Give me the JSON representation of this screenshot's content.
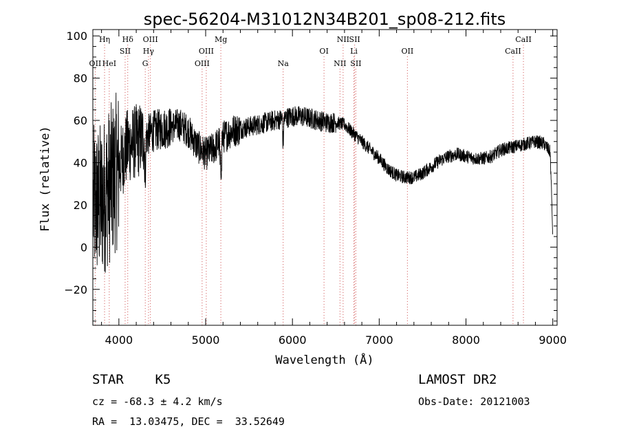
{
  "chart_data": {
    "type": "line",
    "title": "spec-56204-M31012N34B201_sp08-212.fits",
    "xlabel": "Wavelength (Å)",
    "ylabel": "Flux (relative)",
    "xlim": [
      3700,
      9050
    ],
    "ylim": [
      -37,
      103
    ],
    "xticks": [
      4000,
      5000,
      6000,
      7000,
      8000,
      9000
    ],
    "yticks": [
      -20,
      0,
      20,
      40,
      60,
      80,
      100
    ],
    "grid": false,
    "line_color": "#000000",
    "marker_color": "#d05050",
    "spectral_lines": [
      {
        "label": "Hη",
        "x": 3835,
        "row": 0
      },
      {
        "label": "OII",
        "x": 3727,
        "row": 2
      },
      {
        "label": "HeI",
        "x": 3889,
        "row": 2
      },
      {
        "label": "Hδ",
        "x": 4102,
        "row": 0
      },
      {
        "label": "SII",
        "x": 4072,
        "row": 1
      },
      {
        "label": "OIII",
        "x": 4363,
        "row": 0
      },
      {
        "label": "Hγ",
        "x": 4341,
        "row": 1
      },
      {
        "label": "G",
        "x": 4304,
        "row": 2
      },
      {
        "label": "Mg",
        "x": 5175,
        "row": 0
      },
      {
        "label": "OIII",
        "x": 5007,
        "row": 1
      },
      {
        "label": "OIII",
        "x": 4959,
        "row": 2
      },
      {
        "label": "Na",
        "x": 5893,
        "row": 2
      },
      {
        "label": "OI",
        "x": 6364,
        "row": 1
      },
      {
        "label": "NII",
        "x": 6584,
        "row": 0
      },
      {
        "label": "SII",
        "x": 6717,
        "row": 0
      },
      {
        "label": "Li",
        "x": 6708,
        "row": 1
      },
      {
        "label": "NII",
        "x": 6548,
        "row": 2
      },
      {
        "label": "SII",
        "x": 6731,
        "row": 2
      },
      {
        "label": "OII",
        "x": 7325,
        "row": 1
      },
      {
        "label": "CaII",
        "x": 8662,
        "row": 0
      },
      {
        "label": "CaII",
        "x": 8542,
        "row": 1
      }
    ],
    "continuum_anchors": [
      [
        3700,
        20
      ],
      [
        3800,
        22
      ],
      [
        3900,
        30
      ],
      [
        4000,
        38
      ],
      [
        4100,
        48
      ],
      [
        4200,
        50
      ],
      [
        4300,
        52
      ],
      [
        4400,
        55
      ],
      [
        4500,
        56
      ],
      [
        4600,
        57
      ],
      [
        4700,
        58
      ],
      [
        4800,
        55
      ],
      [
        4900,
        48
      ],
      [
        5000,
        44
      ],
      [
        5100,
        47
      ],
      [
        5200,
        52
      ],
      [
        5300,
        55
      ],
      [
        5400,
        56
      ],
      [
        5500,
        57
      ],
      [
        5600,
        58
      ],
      [
        5700,
        59
      ],
      [
        5800,
        60
      ],
      [
        5900,
        61
      ],
      [
        6000,
        62
      ],
      [
        6100,
        62
      ],
      [
        6200,
        61
      ],
      [
        6300,
        60
      ],
      [
        6400,
        59
      ],
      [
        6500,
        59
      ],
      [
        6600,
        58
      ],
      [
        6700,
        54
      ],
      [
        6800,
        50
      ],
      [
        6900,
        46
      ],
      [
        7000,
        42
      ],
      [
        7100,
        37
      ],
      [
        7200,
        34
      ],
      [
        7300,
        33
      ],
      [
        7400,
        33
      ],
      [
        7500,
        35
      ],
      [
        7600,
        38
      ],
      [
        7700,
        41
      ],
      [
        7800,
        43
      ],
      [
        7900,
        44
      ],
      [
        8000,
        43
      ],
      [
        8100,
        42
      ],
      [
        8200,
        42
      ],
      [
        8300,
        43
      ],
      [
        8400,
        46
      ],
      [
        8500,
        47
      ],
      [
        8600,
        48
      ],
      [
        8700,
        49
      ],
      [
        8800,
        50
      ],
      [
        8900,
        49
      ],
      [
        8970,
        45
      ],
      [
        8990,
        20
      ],
      [
        9000,
        3
      ]
    ]
  },
  "info": {
    "class_line": "STAR    K5",
    "cz_line": "cz = -68.3 ± 4.2 km/s",
    "radec_line": "RA =  13.03475, DEC =  33.52649",
    "survey": "LAMOST DR2",
    "obs_date": "Obs-Date: 20121003"
  }
}
